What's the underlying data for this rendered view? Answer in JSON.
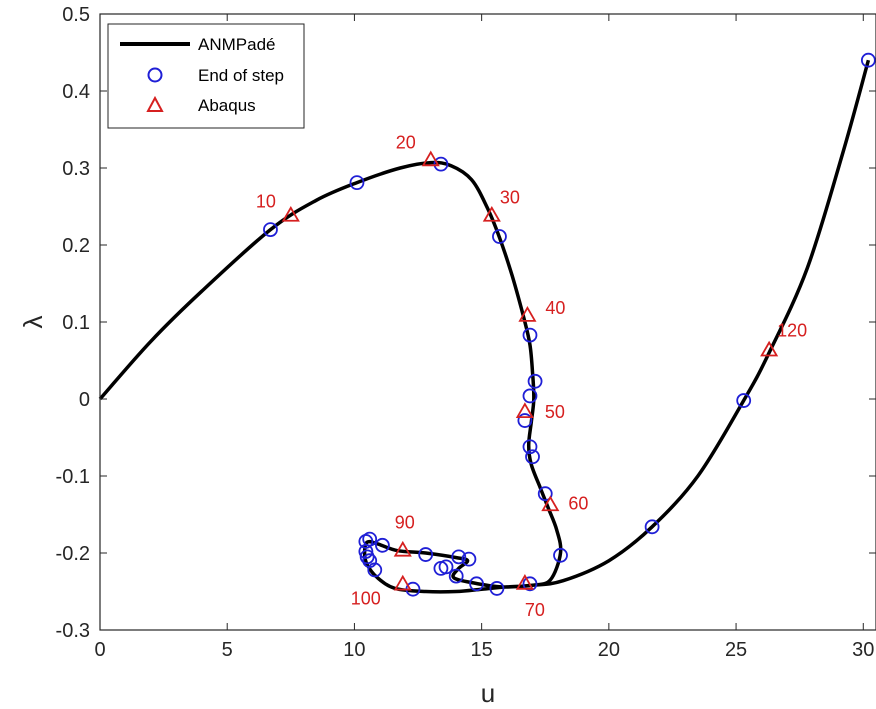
{
  "chart_data": {
    "type": "line",
    "xlabel": "u",
    "ylabel": "λ",
    "xlim": [
      0,
      30.5
    ],
    "ylim": [
      -0.3,
      0.5
    ],
    "x_ticks": [
      0,
      5,
      10,
      15,
      20,
      25,
      30
    ],
    "y_ticks": [
      -0.3,
      -0.2,
      -0.1,
      0,
      0.1,
      0.2,
      0.3,
      0.4,
      0.5
    ],
    "grid": false,
    "legend_position": "top-left",
    "colors": {
      "curve": "#000000",
      "steps": "#1f1fd6",
      "abaqus": "#d62020",
      "axis": "#262626"
    },
    "series": [
      {
        "name": "ANMPadé",
        "kind": "line",
        "points": [
          [
            0,
            0
          ],
          [
            2,
            0.075
          ],
          [
            4,
            0.14
          ],
          [
            6.7,
            0.22
          ],
          [
            8.5,
            0.258
          ],
          [
            10.1,
            0.281
          ],
          [
            11.8,
            0.3
          ],
          [
            13.0,
            0.307
          ],
          [
            13.8,
            0.303
          ],
          [
            14.6,
            0.285
          ],
          [
            15.2,
            0.25
          ],
          [
            15.7,
            0.21
          ],
          [
            16.2,
            0.16
          ],
          [
            16.7,
            0.1
          ],
          [
            16.9,
            0.07
          ],
          [
            17.0,
            0.035
          ],
          [
            17.05,
            0.0
          ],
          [
            16.95,
            -0.03
          ],
          [
            16.85,
            -0.06
          ],
          [
            16.95,
            -0.085
          ],
          [
            17.3,
            -0.115
          ],
          [
            17.6,
            -0.14
          ],
          [
            17.95,
            -0.17
          ],
          [
            18.1,
            -0.2
          ],
          [
            17.7,
            -0.235
          ],
          [
            17.0,
            -0.242
          ],
          [
            16.0,
            -0.244
          ],
          [
            15.0,
            -0.247
          ],
          [
            14.0,
            -0.25
          ],
          [
            12.8,
            -0.25
          ],
          [
            11.6,
            -0.246
          ],
          [
            10.9,
            -0.232
          ],
          [
            10.5,
            -0.215
          ],
          [
            10.4,
            -0.2
          ],
          [
            10.5,
            -0.186
          ],
          [
            10.9,
            -0.188
          ],
          [
            11.7,
            -0.197
          ],
          [
            12.8,
            -0.2
          ],
          [
            14.0,
            -0.206
          ],
          [
            14.45,
            -0.21
          ],
          [
            14.1,
            -0.22
          ],
          [
            13.9,
            -0.232
          ],
          [
            14.7,
            -0.239
          ],
          [
            15.8,
            -0.244
          ],
          [
            17.0,
            -0.242
          ],
          [
            18.2,
            -0.236
          ],
          [
            20.0,
            -0.21
          ],
          [
            21.7,
            -0.166
          ],
          [
            23.5,
            -0.1
          ],
          [
            25.3,
            -0.002
          ],
          [
            26.3,
            0.06
          ],
          [
            27.8,
            0.17
          ],
          [
            29.2,
            0.32
          ],
          [
            30.2,
            0.44
          ]
        ]
      },
      {
        "name": "End of step",
        "kind": "marker",
        "marker": "circle",
        "points": [
          [
            6.7,
            0.22
          ],
          [
            10.1,
            0.281
          ],
          [
            13.4,
            0.305
          ],
          [
            15.7,
            0.211
          ],
          [
            16.9,
            0.083
          ],
          [
            17.1,
            0.023
          ],
          [
            16.9,
            0.004
          ],
          [
            16.7,
            -0.028
          ],
          [
            16.9,
            -0.062
          ],
          [
            17.0,
            -0.075
          ],
          [
            17.5,
            -0.123
          ],
          [
            18.1,
            -0.203
          ],
          [
            16.9,
            -0.24
          ],
          [
            15.6,
            -0.246
          ],
          [
            14.8,
            -0.24
          ],
          [
            14.0,
            -0.23
          ],
          [
            13.6,
            -0.218
          ],
          [
            13.4,
            -0.22
          ],
          [
            14.1,
            -0.205
          ],
          [
            14.5,
            -0.208
          ],
          [
            12.8,
            -0.202
          ],
          [
            11.1,
            -0.19
          ],
          [
            10.6,
            -0.182
          ],
          [
            10.45,
            -0.185
          ],
          [
            10.45,
            -0.198
          ],
          [
            10.5,
            -0.205
          ],
          [
            10.6,
            -0.21
          ],
          [
            10.8,
            -0.222
          ],
          [
            12.3,
            -0.247
          ],
          [
            21.7,
            -0.166
          ],
          [
            25.3,
            -0.002
          ],
          [
            30.2,
            0.44
          ]
        ]
      },
      {
        "name": "Abaqus",
        "kind": "marker",
        "marker": "triangle",
        "points": [
          [
            7.5,
            0.238,
            "10"
          ],
          [
            13.0,
            0.31,
            "20"
          ],
          [
            15.4,
            0.238,
            "30"
          ],
          [
            16.8,
            0.108,
            "40"
          ],
          [
            16.7,
            -0.017,
            "50"
          ],
          [
            17.7,
            -0.138,
            "60"
          ],
          [
            16.7,
            -0.24,
            "70"
          ],
          [
            11.9,
            -0.197,
            "90"
          ],
          [
            11.9,
            -0.241,
            "100"
          ],
          [
            26.3,
            0.063,
            "120"
          ]
        ]
      }
    ]
  }
}
